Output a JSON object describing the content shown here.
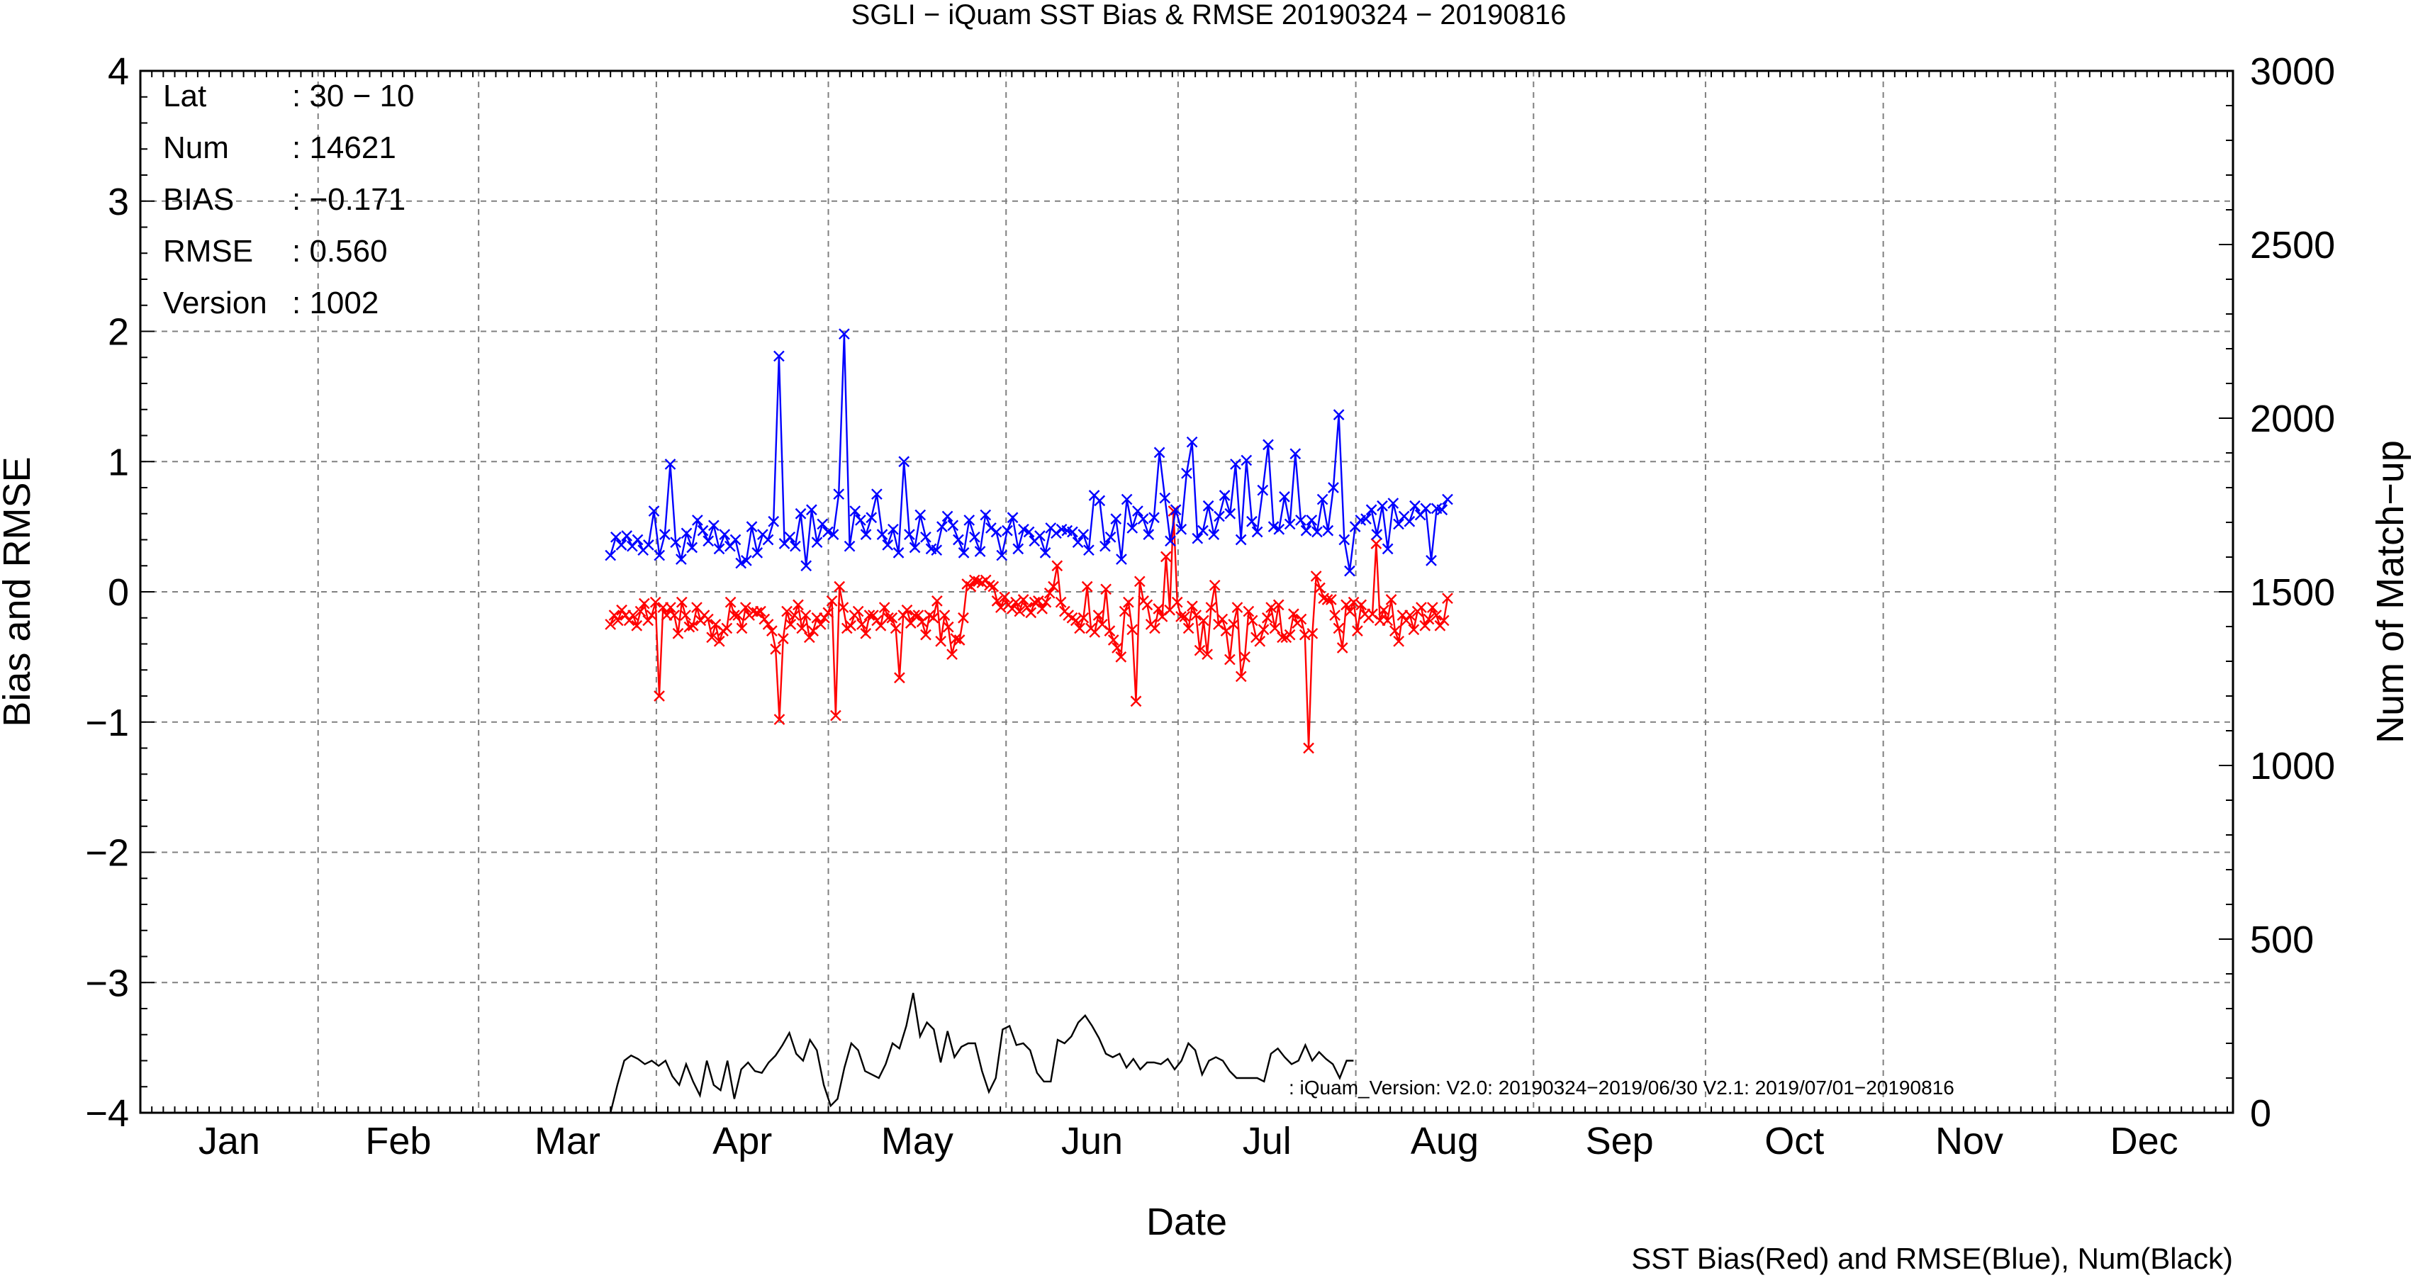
{
  "chart_data": {
    "type": "line",
    "title": "SGLI − iQuam  SST Bias & RMSE 20190324 − 20190816",
    "xlabel": "Date",
    "ylabel": "Bias and RMSE",
    "y2label": "Num of Match−up",
    "footer": "SST Bias(Red) and RMSE(Blue), Num(Black)",
    "note": ": iQuam_Version: V2.0: 20190324−2019/06/30 V2.1: 2019/07/01−20190816",
    "ylim": [
      -4,
      4
    ],
    "y2lim": [
      0,
      3000
    ],
    "yticks": [
      "4",
      "3",
      "2",
      "1",
      "0",
      "−1",
      "−2",
      "−3",
      "−4"
    ],
    "y2ticks": [
      "3000",
      "2500",
      "2000",
      "1500",
      "1000",
      "500",
      "0"
    ],
    "xticks": [
      "Jan",
      "Feb",
      "Mar",
      "Apr",
      "May",
      "Jun",
      "Jul",
      "Aug",
      "Sep",
      "Oct",
      "Nov",
      "Dec"
    ],
    "grid": true,
    "stats": [
      {
        "key": "Lat",
        "value": ": 30 − 10"
      },
      {
        "key": "Num",
        "value": ": 14621"
      },
      {
        "key": "BIAS",
        "value": ": −0.171"
      },
      {
        "key": "RMSE",
        "value": ": 0.560"
      },
      {
        "key": "Version",
        "value": ": 1002"
      }
    ],
    "colors": {
      "bias": "#ff0000",
      "rmse": "#0000ff",
      "num": "#000000",
      "grid": "#808080"
    },
    "x_start_doy": 83,
    "series": [
      {
        "name": "RMSE",
        "axis": "left",
        "values": [
          0.28,
          0.42,
          0.36,
          0.43,
          0.35,
          0.4,
          0.32,
          0.36,
          0.62,
          0.28,
          0.44,
          0.98,
          0.38,
          0.25,
          0.45,
          0.34,
          0.55,
          0.47,
          0.39,
          0.51,
          0.33,
          0.44,
          0.35,
          0.4,
          0.22,
          0.24,
          0.5,
          0.3,
          0.44,
          0.4,
          0.54,
          1.81,
          0.37,
          0.42,
          0.35,
          0.6,
          0.2,
          0.63,
          0.38,
          0.52,
          0.46,
          0.44,
          0.75,
          1.98,
          0.35,
          0.62,
          0.55,
          0.44,
          0.57,
          0.75,
          0.44,
          0.36,
          0.48,
          0.3,
          1.0,
          0.44,
          0.34,
          0.59,
          0.42,
          0.33,
          0.32,
          0.5,
          0.58,
          0.51,
          0.4,
          0.3,
          0.55,
          0.42,
          0.31,
          0.59,
          0.49,
          0.46,
          0.28,
          0.47,
          0.57,
          0.33,
          0.48,
          0.46,
          0.39,
          0.43,
          0.3,
          0.49,
          0.45,
          0.48,
          0.47,
          0.46,
          0.38,
          0.44,
          0.32,
          0.74,
          0.7,
          0.35,
          0.42,
          0.56,
          0.25,
          0.71,
          0.49,
          0.62,
          0.56,
          0.44,
          0.57,
          1.07,
          0.72,
          0.39,
          0.63,
          0.48,
          0.91,
          1.15,
          0.41,
          0.47,
          0.66,
          0.44,
          0.58,
          0.74,
          0.6,
          0.98,
          0.4,
          1.01,
          0.54,
          0.46,
          0.78,
          1.13,
          0.5,
          0.48,
          0.73,
          0.52,
          1.06,
          0.55,
          0.47,
          0.55,
          0.46,
          0.71,
          0.47,
          0.8,
          1.36,
          0.4,
          0.16,
          0.5,
          0.55,
          0.56,
          0.63,
          0.44,
          0.66,
          0.33,
          0.68,
          0.52,
          0.58,
          0.54,
          0.66,
          0.59,
          0.64,
          0.24,
          0.64,
          0.63,
          0.71
        ]
      },
      {
        "name": "BIAS",
        "axis": "left",
        "values": [
          -0.25,
          -0.18,
          -0.22,
          -0.14,
          -0.18,
          -0.22,
          -0.18,
          -0.26,
          -0.15,
          -0.09,
          -0.22,
          -0.18,
          -0.08,
          -0.8,
          -0.12,
          -0.18,
          -0.12,
          -0.18,
          -0.32,
          -0.08,
          -0.18,
          -0.27,
          -0.26,
          -0.12,
          -0.22,
          -0.18,
          -0.21,
          -0.35,
          -0.25,
          -0.38,
          -0.3,
          -0.28,
          -0.08,
          -0.18,
          -0.18,
          -0.28,
          -0.12,
          -0.18,
          -0.15,
          -0.16,
          -0.15,
          -0.21,
          -0.25,
          -0.3,
          -0.44,
          -0.98,
          -0.36,
          -0.15,
          -0.25,
          -0.18,
          -0.1,
          -0.28,
          -0.18,
          -0.35,
          -0.3,
          -0.2,
          -0.25,
          -0.2,
          -0.16,
          -0.07,
          -0.95,
          0.04,
          -0.12,
          -0.28,
          -0.26,
          -0.18,
          -0.15,
          -0.25,
          -0.32,
          -0.18,
          -0.18,
          -0.22,
          -0.26,
          -0.12,
          -0.2,
          -0.2,
          -0.28,
          -0.66,
          -0.18,
          -0.14,
          -0.24,
          -0.18,
          -0.18,
          -0.23,
          -0.33,
          -0.18,
          -0.2,
          -0.07,
          -0.38,
          -0.18,
          -0.27,
          -0.48,
          -0.36,
          -0.37,
          -0.2,
          0.06,
          0.04,
          0.09,
          0.08,
          0.07,
          0.09,
          0.05,
          0.04,
          -0.07,
          -0.12,
          -0.04,
          -0.1,
          -0.13,
          -0.08,
          -0.15,
          -0.06,
          -0.12,
          -0.16,
          -0.08,
          -0.07,
          -0.13,
          -0.08,
          -0.01,
          0.04,
          0.2,
          -0.08,
          -0.15,
          -0.18,
          -0.2,
          -0.22,
          -0.28,
          -0.2,
          0.04,
          -0.28,
          -0.31,
          -0.18,
          -0.25,
          0.02,
          -0.3,
          -0.37,
          -0.43,
          -0.5,
          -0.15,
          -0.08,
          -0.29,
          -0.84,
          0.08,
          -0.07,
          -0.1,
          -0.25,
          -0.28,
          -0.13,
          -0.19,
          0.27,
          -0.14,
          0.62,
          -0.08,
          -0.19,
          -0.19,
          -0.28,
          -0.11,
          -0.18,
          -0.45,
          -0.22,
          -0.48,
          -0.12,
          0.05,
          -0.25,
          -0.21,
          -0.3,
          -0.52,
          -0.25,
          -0.12,
          -0.65,
          -0.5,
          -0.15,
          -0.22,
          -0.35,
          -0.38,
          -0.29,
          -0.2,
          -0.12,
          -0.28,
          -0.1,
          -0.35,
          -0.35,
          -0.33,
          -0.17,
          -0.24,
          -0.21,
          -0.33,
          -1.2,
          -0.32,
          0.12,
          0.03,
          -0.05,
          -0.06,
          -0.06,
          -0.18,
          -0.28,
          -0.43,
          -0.1,
          -0.15,
          -0.08,
          -0.3,
          -0.1,
          -0.17,
          -0.2,
          -0.17,
          0.37,
          -0.22,
          -0.14,
          -0.22,
          -0.06,
          -0.3,
          -0.38,
          -0.18,
          -0.22,
          -0.18,
          -0.29,
          -0.15,
          -0.12,
          -0.26,
          -0.21,
          -0.12,
          -0.18,
          -0.26,
          -0.22,
          -0.05
        ]
      },
      {
        "name": "Num",
        "axis": "right",
        "values": [
          0,
          80,
          150,
          165,
          155,
          140,
          150,
          135,
          150,
          105,
          80,
          140,
          90,
          50,
          150,
          80,
          65,
          150,
          40,
          125,
          145,
          120,
          115,
          145,
          165,
          195,
          230,
          170,
          150,
          210,
          180,
          80,
          20,
          40,
          130,
          200,
          180,
          120,
          110,
          100,
          140,
          200,
          185,
          250,
          345,
          220,
          260,
          240,
          145,
          235,
          160,
          190,
          200,
          200,
          120,
          60,
          100,
          240,
          250,
          195,
          200,
          180,
          115,
          90,
          90,
          210,
          200,
          220,
          260,
          280,
          250,
          215,
          170,
          160,
          170,
          130,
          155,
          125,
          145,
          145,
          140,
          155,
          125,
          150,
          200,
          180,
          110,
          150,
          160,
          150,
          120,
          100,
          100,
          100,
          100,
          90,
          170,
          185,
          160,
          140,
          150,
          195,
          150,
          175,
          155,
          140,
          100,
          150,
          150
        ]
      }
    ]
  }
}
